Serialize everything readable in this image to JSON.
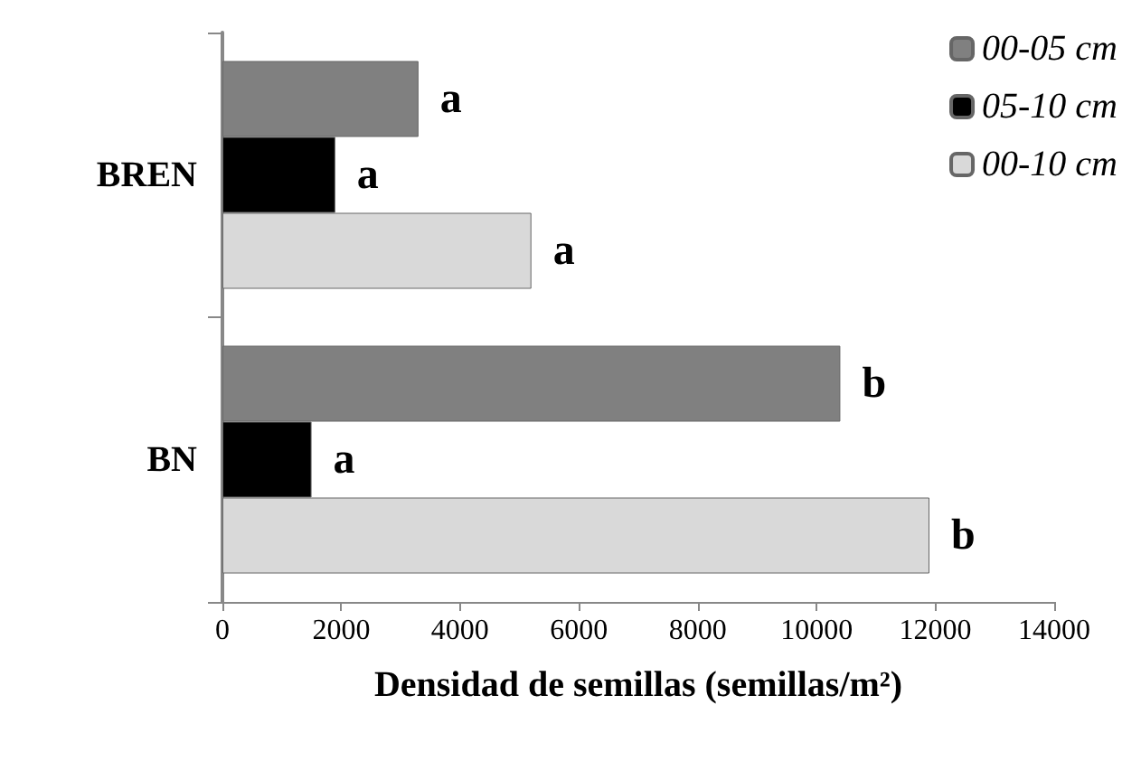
{
  "chart_data": {
    "type": "bar",
    "orientation": "horizontal",
    "xlabel": "Densidad de semillas (semillas/m²)",
    "categories": [
      "BREN",
      "BN"
    ],
    "series": [
      {
        "name": "00-05 cm",
        "color": "#808080",
        "values": [
          3300,
          10400
        ],
        "value_labels": [
          "a",
          "b"
        ]
      },
      {
        "name": "05-10 cm",
        "color": "#000000",
        "values": [
          1900,
          1500
        ],
        "value_labels": [
          "a",
          "a"
        ]
      },
      {
        "name": "00-10 cm",
        "color": "#d9d9d9",
        "values": [
          5200,
          11900
        ],
        "value_labels": [
          "a",
          "b"
        ]
      }
    ],
    "xlim": [
      0,
      14000
    ],
    "xticks": [
      0,
      2000,
      4000,
      6000,
      8000,
      10000,
      12000,
      14000
    ],
    "grid": false,
    "legend": "top right"
  }
}
